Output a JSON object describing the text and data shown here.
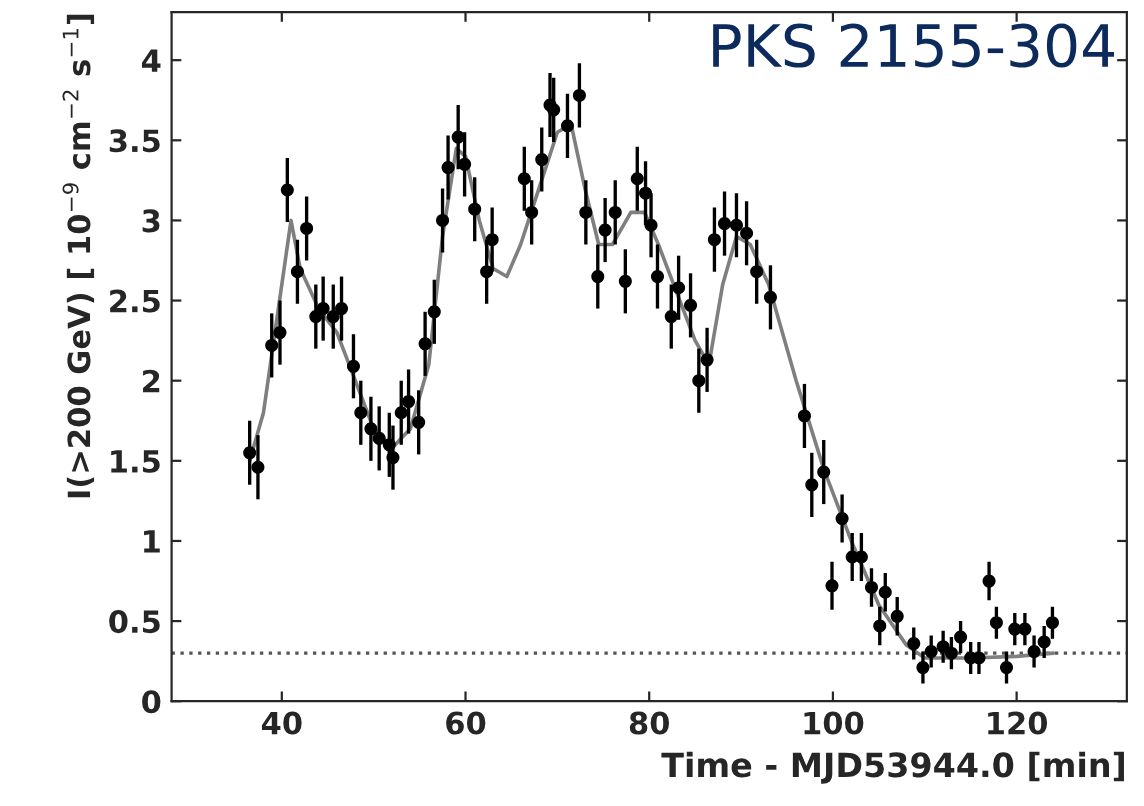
{
  "chart_data": {
    "type": "scatter",
    "title": "PKS 2155-304",
    "xlabel": "Time - MJD53944.0 [min]",
    "ylabel": "I(>200 GeV) [ 10$^{−9}$ cm$^{−2}$ s$^{−1}$]",
    "xlim": [
      28,
      132
    ],
    "xticks": [
      40,
      60,
      80,
      100,
      120
    ],
    "ylim": [
      0,
      4.3
    ],
    "yticks": [
      0,
      0.5,
      1,
      1.5,
      2,
      2.5,
      3,
      3.5,
      4
    ],
    "grid": false,
    "legend": false,
    "series": [
      {
        "color": "#000000",
        "marker": "circle",
        "x": [
          36.5,
          37.4,
          38.9,
          39.8,
          40.6,
          41.7,
          42.7,
          43.7,
          44.5,
          45.6,
          46.5,
          47.8,
          48.6,
          49.7,
          50.6,
          51.7,
          52.1,
          53.0,
          53.8,
          54.9,
          55.6,
          56.6,
          57.5,
          58.1,
          59.2,
          59.9,
          61.0,
          62.3,
          62.9,
          66.4,
          67.2,
          68.3,
          69.2,
          69.6,
          71.1,
          72.4,
          73.1,
          74.4,
          75.2,
          76.3,
          77.4,
          78.7,
          79.6,
          80.2,
          80.9,
          82.4,
          83.2,
          84.5,
          85.4,
          86.3,
          87.1,
          88.2,
          89.5,
          90.6,
          91.7,
          93.2,
          96.9,
          97.7,
          99.0,
          99.9,
          101.0,
          102.1,
          103.1,
          104.2,
          105.1,
          105.7,
          107.0,
          108.8,
          109.8,
          110.7,
          112.0,
          112.9,
          113.9,
          115.0,
          115.9,
          117.0,
          117.8,
          118.9,
          119.8,
          120.9,
          121.9,
          123.0,
          123.9
        ],
        "values": [
          1.55,
          1.46,
          2.22,
          2.3,
          3.19,
          2.68,
          2.95,
          2.4,
          2.45,
          2.4,
          2.45,
          2.09,
          1.8,
          1.7,
          1.64,
          1.6,
          1.52,
          1.8,
          1.87,
          1.74,
          2.23,
          2.43,
          3.0,
          3.33,
          3.52,
          3.35,
          3.07,
          2.68,
          2.88,
          3.26,
          3.05,
          3.38,
          3.72,
          3.69,
          3.59,
          3.78,
          3.05,
          2.65,
          2.94,
          3.05,
          2.62,
          3.26,
          3.17,
          2.97,
          2.65,
          2.4,
          2.58,
          2.47,
          2.0,
          2.13,
          2.88,
          2.98,
          2.97,
          2.92,
          2.68,
          2.52,
          1.78,
          1.35,
          1.43,
          0.72,
          1.14,
          0.9,
          0.9,
          0.71,
          0.47,
          0.68,
          0.53,
          0.36,
          0.21,
          0.31,
          0.34,
          0.3,
          0.4,
          0.27,
          0.27,
          0.75,
          0.49,
          0.21,
          0.45,
          0.45,
          0.31,
          0.37,
          0.49
        ],
        "errors": [
          0.2,
          0.2,
          0.2,
          0.2,
          0.2,
          0.2,
          0.2,
          0.2,
          0.2,
          0.2,
          0.2,
          0.2,
          0.2,
          0.2,
          0.2,
          0.2,
          0.2,
          0.2,
          0.2,
          0.2,
          0.2,
          0.2,
          0.2,
          0.2,
          0.2,
          0.2,
          0.2,
          0.2,
          0.2,
          0.2,
          0.2,
          0.2,
          0.2,
          0.2,
          0.2,
          0.2,
          0.2,
          0.2,
          0.2,
          0.2,
          0.2,
          0.2,
          0.2,
          0.2,
          0.2,
          0.2,
          0.2,
          0.2,
          0.2,
          0.2,
          0.2,
          0.2,
          0.2,
          0.2,
          0.2,
          0.2,
          0.2,
          0.2,
          0.2,
          0.15,
          0.15,
          0.15,
          0.15,
          0.12,
          0.12,
          0.12,
          0.12,
          0.1,
          0.1,
          0.1,
          0.1,
          0.1,
          0.1,
          0.1,
          0.1,
          0.12,
          0.1,
          0.1,
          0.1,
          0.1,
          0.1,
          0.1,
          0.1
        ]
      },
      {
        "type": "line",
        "color": "#7f7f7f",
        "line_style": "solid",
        "x": [
          36.5,
          38,
          39.5,
          41,
          42,
          44,
          46,
          48,
          50,
          52,
          54,
          56,
          57.5,
          59,
          60,
          61.5,
          63,
          64.5,
          66,
          68,
          70,
          71.5,
          73,
          74.5,
          76,
          78,
          79.5,
          81,
          83,
          85,
          86.5,
          88,
          89.5,
          91,
          93,
          96,
          99,
          102,
          105,
          108,
          110,
          115,
          120,
          124
        ],
        "values": [
          1.5,
          1.8,
          2.4,
          3.0,
          2.7,
          2.45,
          2.3,
          2.0,
          1.7,
          1.58,
          1.7,
          2.1,
          2.9,
          3.45,
          3.4,
          3.0,
          2.7,
          2.65,
          2.85,
          3.2,
          3.55,
          3.6,
          3.2,
          2.85,
          2.85,
          3.05,
          3.05,
          2.85,
          2.55,
          2.25,
          2.1,
          2.6,
          2.9,
          2.85,
          2.6,
          2.0,
          1.45,
          1.0,
          0.6,
          0.35,
          0.27,
          0.27,
          0.28,
          0.3
        ]
      }
    ],
    "ref_lines": [
      {
        "axis": "y",
        "value": 0.3,
        "color": "#555555",
        "line_style": "dotted"
      }
    ]
  }
}
